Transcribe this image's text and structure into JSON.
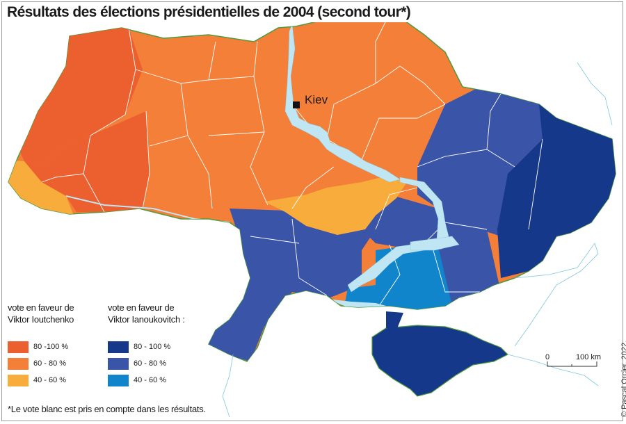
{
  "title": "Résultats des élections présidentielles de 2004 (second tour*)",
  "city": {
    "name": "Kiev"
  },
  "legend": {
    "yushchenko": {
      "heading_line1": "vote en faveur de",
      "heading_line2": "Viktor Ioutchenko",
      "items": [
        {
          "label": "80 -100 %",
          "color": "#ec5f2f"
        },
        {
          "label": "60 - 80 %",
          "color": "#f47f38"
        },
        {
          "label": "40 - 60 %",
          "color": "#f8ac3c"
        }
      ]
    },
    "yanukovych": {
      "heading_line1": "vote en faveur de",
      "heading_line2": "Viktor Ianoukovitch :",
      "items": [
        {
          "label": "80 - 100 %",
          "color": "#15388a"
        },
        {
          "label": "60 - 80 %",
          "color": "#3a54a8"
        },
        {
          "label": "40 - 60 %",
          "color": "#1085cc"
        }
      ]
    }
  },
  "scale": {
    "zero": "0",
    "distance": "100 km"
  },
  "footnote": "*Le vote blanc est pris en compte dans les résultats.",
  "credit": "© Pascal Orcier, 2022.",
  "colors": {
    "border": "#4e9a3c",
    "water": "#bfe6f2",
    "internal": "#ffffff"
  }
}
